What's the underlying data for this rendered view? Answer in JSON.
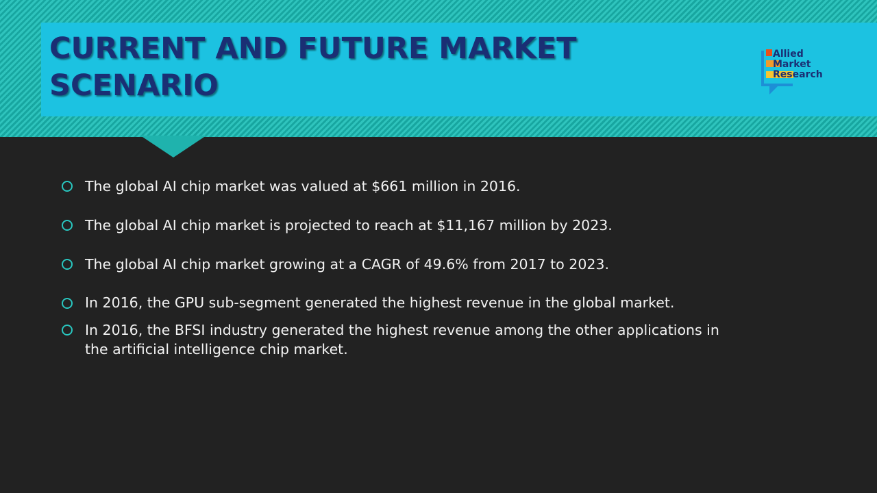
{
  "slide": {
    "title_line1": "CURRENT AND FUTURE MARKET",
    "title_line2": "SCENARIO"
  },
  "logo": {
    "line1": "Allied",
    "line2": "Market",
    "line3": "Research",
    "colors": {
      "orange": "#e8501c",
      "light_orange": "#f39a2c",
      "yellow": "#f7c531",
      "blue": "#1d8fd6"
    }
  },
  "bullets": [
    {
      "text": "The global AI chip market was valued at $661 million in 2016."
    },
    {
      "text": "The global AI chip market  is projected to reach at $11,167 million by 2023."
    },
    {
      "text": "The global AI chip market growing at a CAGR of 49.6% from 2017 to 2023."
    },
    {
      "text": "In 2016, the GPU sub-segment generated the highest revenue in the global market."
    },
    {
      "text": "In 2016, the BFSI industry generated the highest revenue among the other applications in the artificial intelligence chip market."
    }
  ],
  "colors": {
    "background": "#222222",
    "header_teal": "#1fb3ad",
    "title_box": "#1cc2e1",
    "title_text": "#1a2f74",
    "bullet_icon": "#29c7c0",
    "body_text": "#f2f2f2"
  }
}
